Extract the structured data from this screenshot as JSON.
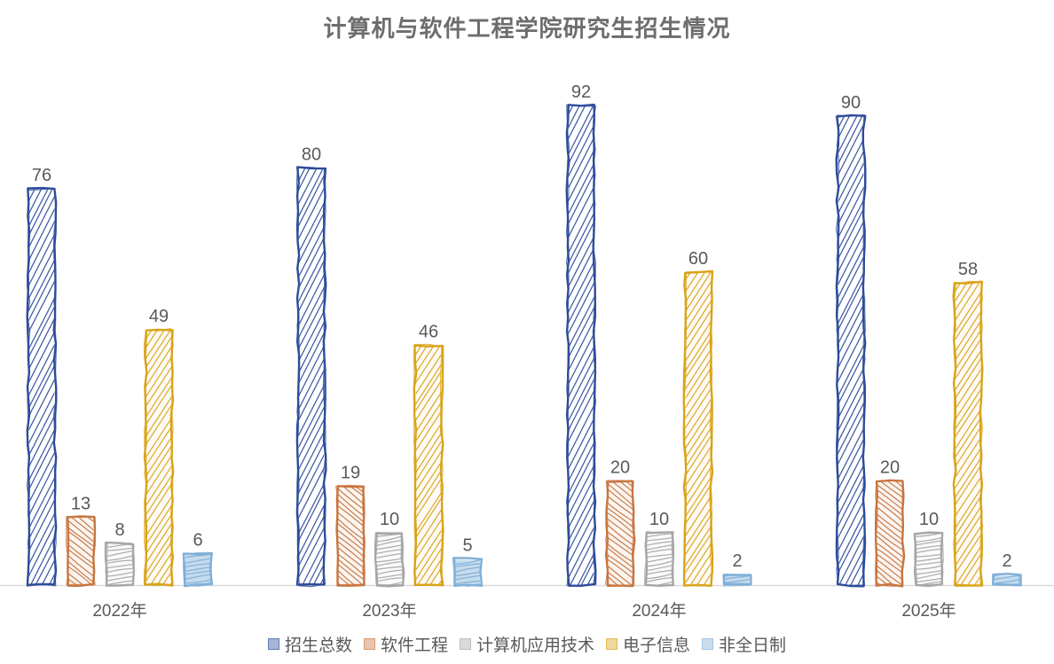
{
  "title": "计算机与软件工程学院研究生招生情况",
  "colors": {
    "title_text": "#6d6d6d",
    "label_text": "#595959",
    "axis_line": "#d9d9d9",
    "background": "#ffffff",
    "series_blue": "#2E4C9B",
    "series_orange": "#C8753F",
    "series_gray": "#A6A6A6",
    "series_gold": "#D9A318",
    "series_lightblue": "#7FAFD8"
  },
  "chart_data": {
    "type": "bar",
    "style": "hand-drawn-sketch",
    "title": "计算机与软件工程学院研究生招生情况",
    "categories": [
      "2022年",
      "2023年",
      "2024年",
      "2025年"
    ],
    "series": [
      {
        "name": "招生总数",
        "color": "#2E4C9B",
        "values": [
          76,
          80,
          92,
          90
        ]
      },
      {
        "name": "软件工程",
        "color": "#C8753F",
        "values": [
          13,
          19,
          20,
          20
        ]
      },
      {
        "name": "计算机应用技术",
        "color": "#A6A6A6",
        "values": [
          8,
          10,
          10,
          10
        ]
      },
      {
        "name": "电子信息",
        "color": "#D9A318",
        "values": [
          49,
          46,
          60,
          58
        ]
      },
      {
        "name": "非全日制",
        "color": "#7FAFD8",
        "values": [
          6,
          5,
          2,
          2
        ]
      }
    ],
    "data_labels": [
      [
        76,
        80,
        92,
        90
      ],
      [
        13,
        19,
        20,
        20
      ],
      [
        8,
        10,
        10,
        10
      ],
      [
        49,
        46,
        60,
        58
      ],
      [
        6,
        5,
        2,
        2
      ]
    ],
    "xlabel": "",
    "ylabel": "",
    "ylim": [
      0,
      100
    ],
    "grid": false,
    "y_axis_visible": false,
    "legend_position": "bottom"
  }
}
